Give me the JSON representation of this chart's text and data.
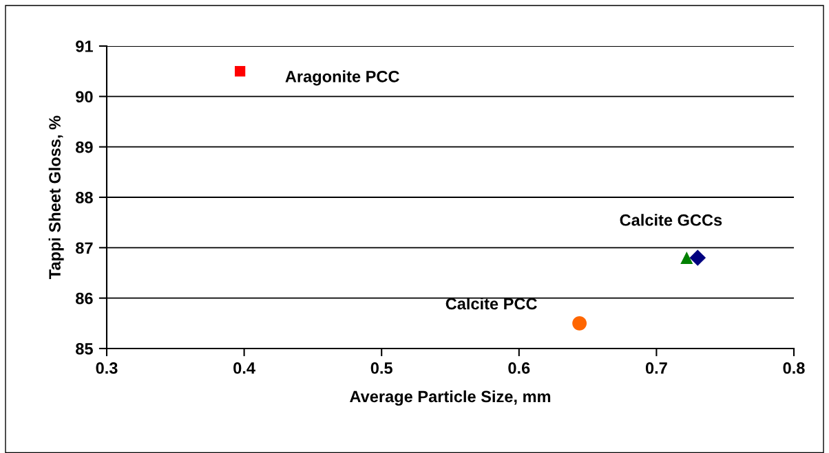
{
  "chart_data": {
    "type": "scatter",
    "xlabel": "Average Particle Size, mm",
    "ylabel": "Tappi Sheet Gloss, %",
    "series": [
      {
        "x": [
          0.397
        ],
        "values": [
          90.5
        ],
        "color": "#ff0000",
        "marker": "square"
      },
      {
        "x": [
          0.722
        ],
        "values": [
          86.8
        ],
        "color": "#008000",
        "marker": "triangle"
      },
      {
        "x": [
          0.73
        ],
        "values": [
          86.8
        ],
        "color": "#000080",
        "marker": "diamond"
      },
      {
        "x": [
          0.644
        ],
        "values": [
          85.5
        ],
        "color": "#ff6600",
        "marker": "circle"
      }
    ],
    "annotations": [
      {
        "text": "Aragonite PCC",
        "x": 0.397,
        "y": 90.5
      },
      {
        "text": "Calcite GCCs",
        "x": 0.73,
        "y": 86.8
      },
      {
        "text": "Calcite PCC",
        "x": 0.644,
        "y": 85.5
      }
    ],
    "xlim": [
      0.3,
      0.8
    ],
    "xticks": [
      {
        "value": 0.3,
        "label": "0.3"
      },
      {
        "value": 0.4,
        "label": "0.4"
      },
      {
        "value": 0.5,
        "label": "0.5"
      },
      {
        "value": 0.6,
        "label": "0.6"
      },
      {
        "value": 0.7,
        "label": "0.7"
      },
      {
        "value": 0.8,
        "label": "0.8"
      }
    ],
    "ylim": [
      85,
      91
    ],
    "yticks": [
      85,
      86,
      87,
      88,
      89,
      90,
      91
    ],
    "grid": "y",
    "legend": false
  }
}
